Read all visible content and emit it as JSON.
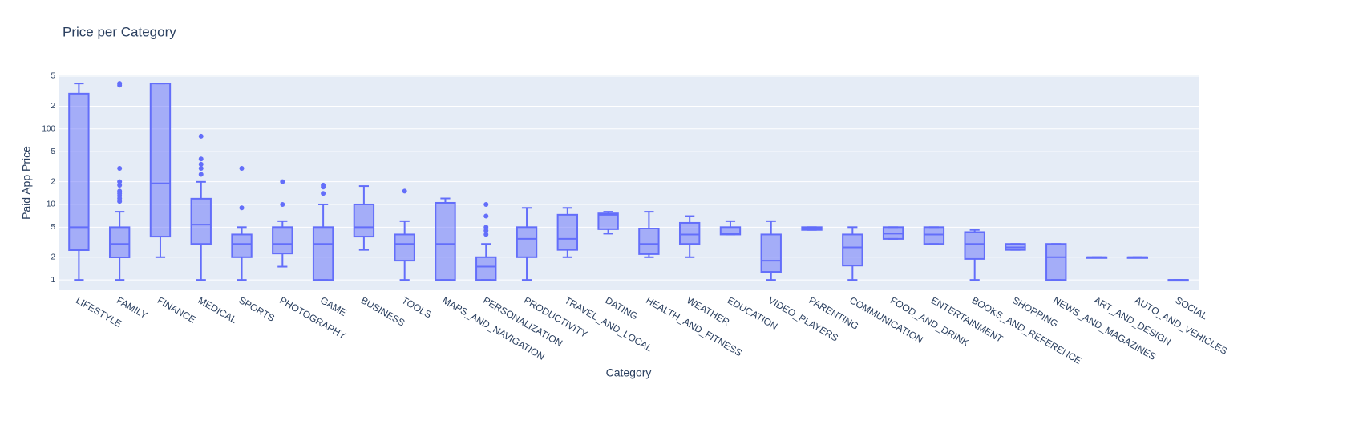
{
  "chart_data": {
    "type": "box",
    "title": "Price per Category",
    "xlabel": "Category",
    "ylabel": "Paid App Price",
    "log_y": true,
    "grid": true,
    "color": "#636efa",
    "ylim": [
      0.73,
      525
    ],
    "yticks": [
      1,
      2,
      5,
      10,
      {
        "value": 20,
        "label": "2"
      },
      {
        "value": 50,
        "label": "5"
      },
      100,
      {
        "value": 200,
        "label": "2"
      },
      {
        "value": 500,
        "label": "5"
      }
    ],
    "categories": [
      "LIFESTYLE",
      "FAMILY",
      "FINANCE",
      "MEDICAL",
      "SPORTS",
      "PHOTOGRAPHY",
      "GAME",
      "BUSINESS",
      "TOOLS",
      "MAPS_AND_NAVIGATION",
      "PERSONALIZATION",
      "PRODUCTIVITY",
      "TRAVEL_AND_LOCAL",
      "DATING",
      "HEALTH_AND_FITNESS",
      "WEATHER",
      "EDUCATION",
      "VIDEO_PLAYERS",
      "PARENTING",
      "COMMUNICATION",
      "FOOD_AND_DRINK",
      "ENTERTAINMENT",
      "BOOKS_AND_REFERENCE",
      "SHOPPING",
      "NEWS_AND_MAGAZINES",
      "ART_AND_DESIGN",
      "AUTO_AND_VEHICLES",
      "SOCIAL"
    ],
    "min": [
      1,
      1,
      2,
      1,
      1,
      1.5,
      1,
      2.5,
      1,
      1,
      1,
      1,
      2,
      4.1,
      2,
      2,
      4,
      1,
      4.6,
      1,
      3.5,
      3,
      1,
      2.5,
      1,
      2,
      2,
      1
    ],
    "q1": [
      2.48,
      1.99,
      3.75,
      3,
      2,
      2.24,
      1,
      3.75,
      1.8,
      1,
      1,
      2,
      2.5,
      4.7,
      2.2,
      3,
      4,
      1.28,
      4.6,
      1.55,
      3.5,
      3,
      1.9,
      2.5,
      1,
      2,
      2,
      1
    ],
    "median": [
      4.99,
      3,
      19,
      5.4,
      3,
      3,
      3,
      5,
      3,
      3,
      1.5,
      3.5,
      3.5,
      7.3,
      3,
      4,
      4.1,
      1.8,
      4.8,
      2.7,
      4.1,
      4,
      3,
      2.7,
      2,
      2,
      2,
      1
    ],
    "q3": [
      293,
      4.99,
      400,
      11.9,
      4,
      5,
      5,
      10,
      4,
      10.5,
      2,
      5,
      7.3,
      7.6,
      4.8,
      5.7,
      5,
      4,
      5,
      4,
      5,
      5,
      4.3,
      3,
      3,
      2,
      2,
      1
    ],
    "max": [
      400,
      8,
      400,
      19.9,
      5,
      6,
      10,
      17.5,
      6,
      12,
      3,
      9,
      9,
      8,
      8,
      7,
      6,
      6,
      5,
      5,
      5,
      5,
      4.6,
      3,
      3,
      2,
      2,
      1
    ],
    "outliers": [
      [],
      [
        399.99,
        379.99,
        29.99,
        19.99,
        17.99,
        14.99,
        13.99,
        12.99,
        11.99,
        10.99
      ],
      [],
      [
        80,
        40,
        34,
        30,
        25
      ],
      [
        30,
        9
      ],
      [
        20,
        10
      ],
      [
        18,
        17,
        14
      ],
      [],
      [
        15
      ],
      [],
      [
        10,
        7,
        5,
        4.5,
        4
      ],
      [],
      [],
      [],
      [],
      [],
      [],
      [],
      [],
      [],
      [],
      [],
      [],
      [],
      [],
      [],
      [],
      []
    ]
  }
}
